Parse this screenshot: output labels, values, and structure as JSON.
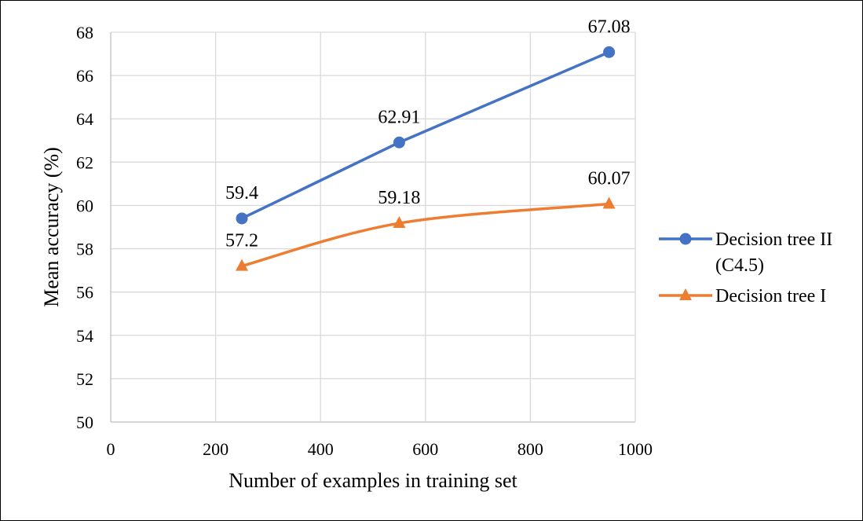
{
  "chart_data": {
    "type": "line",
    "xlabel": "Number of examples in training set",
    "ylabel": "Mean accuracy (%)",
    "xlim": [
      0,
      1000
    ],
    "ylim": [
      50,
      68
    ],
    "x_ticks": [
      0,
      200,
      400,
      600,
      800,
      1000
    ],
    "y_ticks": [
      50,
      52,
      54,
      56,
      58,
      60,
      62,
      64,
      66,
      68
    ],
    "grid": true,
    "legend_position": "right",
    "series": [
      {
        "name": "Decision tree II (C4.5)",
        "legend_lines": [
          "Decision tree II",
          "(C4.5)"
        ],
        "x": [
          250,
          550,
          950
        ],
        "values": [
          59.4,
          62.91,
          67.08
        ],
        "labels": [
          "59.4",
          "62.91",
          "67.08"
        ],
        "color": "#4472C4",
        "marker": "circle",
        "smooth": false
      },
      {
        "name": "Decision tree I",
        "legend_lines": [
          "Decision tree I"
        ],
        "x": [
          250,
          550,
          950
        ],
        "values": [
          57.2,
          59.18,
          60.07
        ],
        "labels": [
          "57.2",
          "59.18",
          "60.07"
        ],
        "color": "#ED7D31",
        "marker": "triangle",
        "smooth": true
      }
    ]
  }
}
